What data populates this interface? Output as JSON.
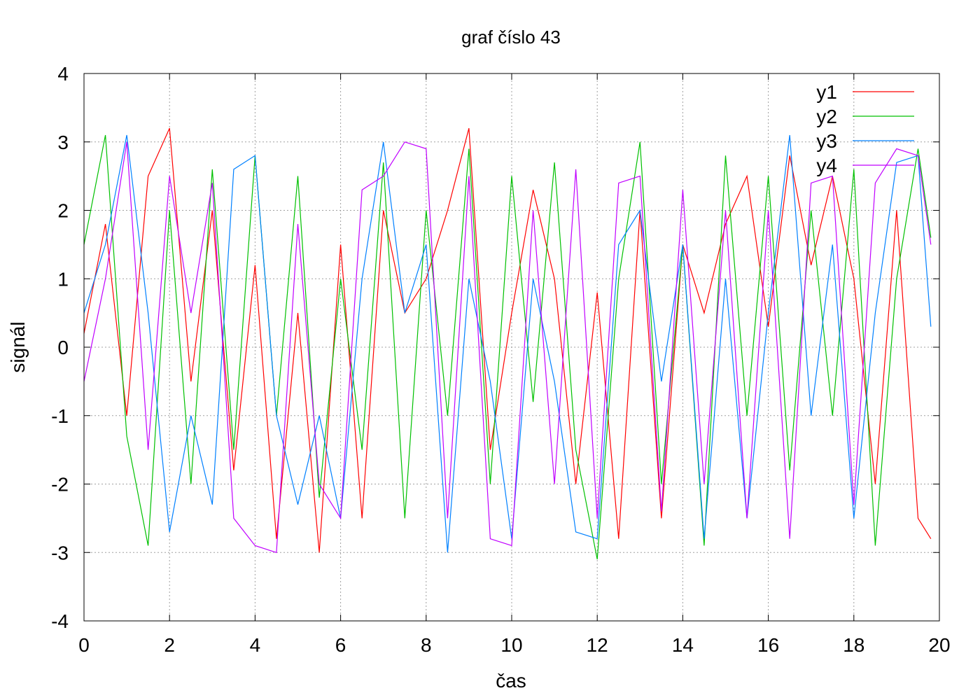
{
  "chart_data": {
    "type": "line",
    "title": "graf číslo 43",
    "xlabel": "čas",
    "ylabel": "signál",
    "xlim": [
      0,
      20
    ],
    "ylim": [
      -4,
      4
    ],
    "xticks": [
      "0",
      "2",
      "4",
      "6",
      "8",
      "10",
      "12",
      "14",
      "16",
      "18",
      "20"
    ],
    "yticks": [
      "-4",
      "-3",
      "-2",
      "-1",
      "0",
      "1",
      "2",
      "3",
      "4"
    ],
    "grid": true,
    "legend_position": "top-right",
    "series": [
      {
        "name": "y1",
        "color": "#ff0000",
        "x": [
          0.0,
          0.5,
          1.0,
          1.5,
          2.0,
          2.5,
          3.0,
          3.5,
          4.0,
          4.5,
          5.0,
          5.5,
          6.0,
          6.5,
          7.0,
          7.5,
          8.0,
          8.5,
          9.0,
          9.5,
          10.0,
          10.5,
          11.0,
          11.5,
          12.0,
          12.5,
          13.0,
          13.5,
          14.0,
          14.5,
          15.0,
          15.5,
          16.0,
          16.5,
          17.0,
          17.5,
          18.0,
          18.5,
          19.0,
          19.5,
          19.8
        ],
        "y": [
          0.2,
          1.8,
          -1.0,
          2.5,
          3.2,
          -0.5,
          2.0,
          -1.8,
          1.2,
          -2.8,
          0.5,
          -3.0,
          1.5,
          -2.5,
          2.0,
          0.5,
          1.0,
          2.0,
          3.2,
          -1.5,
          0.5,
          2.3,
          1.0,
          -2.0,
          0.8,
          -2.8,
          2.0,
          -2.5,
          1.5,
          0.5,
          1.8,
          2.5,
          0.3,
          2.8,
          1.2,
          2.5,
          1.0,
          -2.0,
          2.0,
          -2.5,
          -2.8
        ]
      },
      {
        "name": "y2",
        "color": "#00c000",
        "x": [
          0.0,
          0.5,
          1.0,
          1.5,
          2.0,
          2.5,
          3.0,
          3.5,
          4.0,
          4.5,
          5.0,
          5.5,
          6.0,
          6.5,
          7.0,
          7.5,
          8.0,
          8.5,
          9.0,
          9.5,
          10.0,
          10.5,
          11.0,
          11.5,
          12.0,
          12.5,
          13.0,
          13.5,
          14.0,
          14.5,
          15.0,
          15.5,
          16.0,
          16.5,
          17.0,
          17.5,
          18.0,
          18.5,
          19.0,
          19.5,
          19.8
        ],
        "y": [
          1.5,
          3.1,
          -1.3,
          -2.9,
          2.0,
          -2.0,
          2.6,
          -1.5,
          2.8,
          -1.0,
          2.5,
          -2.2,
          1.0,
          -1.5,
          2.7,
          -2.5,
          2.0,
          -1.0,
          2.9,
          -2.0,
          2.5,
          -0.8,
          2.7,
          -1.5,
          -3.1,
          1.0,
          3.0,
          -2.0,
          1.5,
          -2.9,
          2.8,
          -1.0,
          2.5,
          -1.8,
          2.0,
          -1.0,
          2.6,
          -2.9,
          1.0,
          2.9,
          1.6
        ]
      },
      {
        "name": "y3",
        "color": "#0080ff",
        "x": [
          0.0,
          0.5,
          1.0,
          1.5,
          2.0,
          2.5,
          3.0,
          3.5,
          4.0,
          4.5,
          5.0,
          5.5,
          6.0,
          6.5,
          7.0,
          7.5,
          8.0,
          8.5,
          9.0,
          9.5,
          10.0,
          10.5,
          11.0,
          11.5,
          12.0,
          12.5,
          13.0,
          13.5,
          14.0,
          14.5,
          15.0,
          15.5,
          16.0,
          16.5,
          17.0,
          17.5,
          18.0,
          18.5,
          19.0,
          19.5,
          19.8
        ],
        "y": [
          0.5,
          1.5,
          3.1,
          0.5,
          -2.7,
          -1.0,
          -2.3,
          2.6,
          2.8,
          -1.0,
          -2.3,
          -1.0,
          -2.5,
          1.0,
          3.0,
          0.5,
          1.5,
          -3.0,
          1.0,
          -0.5,
          -2.8,
          1.0,
          -0.5,
          -2.7,
          -2.8,
          1.5,
          2.0,
          -0.5,
          1.5,
          -2.8,
          1.0,
          -2.5,
          0.5,
          3.1,
          -1.0,
          1.5,
          -2.5,
          0.5,
          2.7,
          2.8,
          0.3
        ]
      },
      {
        "name": "y4",
        "color": "#c000ff",
        "x": [
          0.0,
          0.5,
          1.0,
          1.5,
          2.0,
          2.5,
          3.0,
          3.5,
          4.0,
          4.5,
          5.0,
          5.5,
          6.0,
          6.5,
          7.0,
          7.5,
          8.0,
          8.5,
          9.0,
          9.5,
          10.0,
          10.5,
          11.0,
          11.5,
          12.0,
          12.5,
          13.0,
          13.5,
          14.0,
          14.5,
          15.0,
          15.5,
          16.0,
          16.5,
          17.0,
          17.5,
          18.0,
          18.5,
          19.0,
          19.5,
          19.8
        ],
        "y": [
          -0.5,
          1.0,
          3.0,
          -1.5,
          2.5,
          0.5,
          2.4,
          -2.5,
          -2.9,
          -3.0,
          1.8,
          -2.0,
          -2.5,
          2.3,
          2.5,
          3.0,
          2.9,
          -2.5,
          2.5,
          -2.8,
          -2.9,
          2.0,
          -2.0,
          2.6,
          -2.5,
          2.4,
          2.5,
          -2.4,
          2.3,
          -2.0,
          2.0,
          -2.5,
          2.0,
          -2.8,
          2.4,
          2.5,
          -2.3,
          2.4,
          2.9,
          2.8,
          1.5
        ]
      }
    ]
  }
}
